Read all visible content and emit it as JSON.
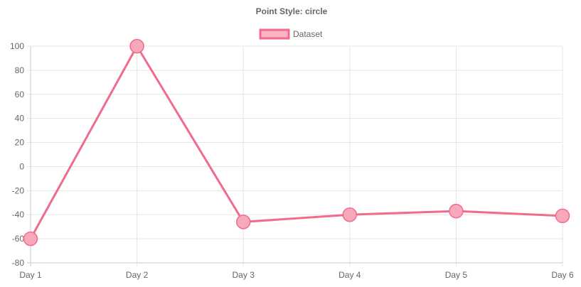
{
  "chart_data": {
    "type": "line",
    "title": "Point Style: circle",
    "categories": [
      "Day 1",
      "Day 2",
      "Day 3",
      "Day 4",
      "Day 5",
      "Day 6"
    ],
    "series": [
      {
        "name": "Dataset",
        "values": [
          -60,
          100,
          -46,
          -40,
          -37,
          -41
        ]
      }
    ],
    "ylim": [
      -80,
      100
    ],
    "yticks": [
      "100",
      "80",
      "60",
      "40",
      "20",
      "0",
      "-20",
      "-40",
      "-60",
      "-80"
    ],
    "grid": true,
    "legend": "top-center",
    "point_style": "circle",
    "colors": {
      "line": "#f06b8c",
      "point_fill": "#f7a8bb",
      "legend_fill": "#f9b3c4"
    }
  }
}
